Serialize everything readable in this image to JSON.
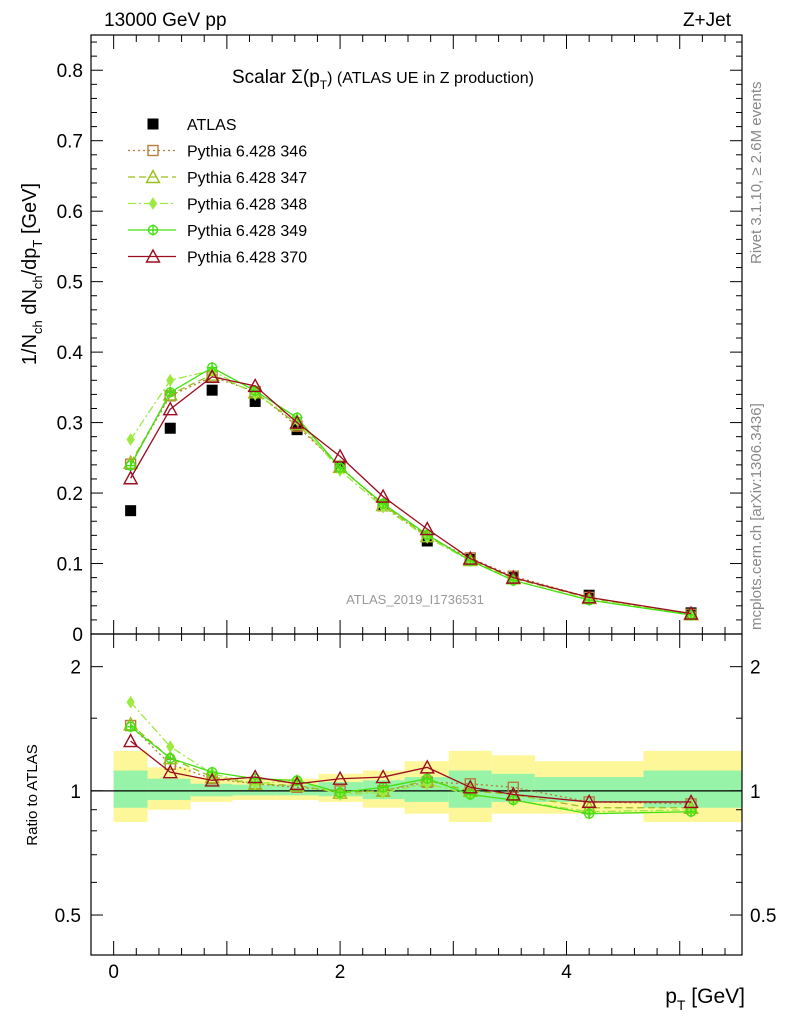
{
  "header": {
    "left": "13000 GeV pp",
    "right": "Z+Jet",
    "side_rivet": "Rivet 3.1.10, ≥ 2.6M events",
    "side_mcplots": "mcplots.cern.ch [arXiv:1306.3436]"
  },
  "chart_data": [
    {
      "type": "scatter",
      "title": "Scalar Σ(p_T) (ATLAS UE in Z production)",
      "title_main": "Scalar Σ(p",
      "title_sub": "T",
      "title_rest": ") (ATLAS UE in Z production)",
      "watermark": "ATLAS_2019_I1736531",
      "ylabel": "1/N_ch dN_ch/dp_T [GeV]",
      "xlabel": "p_T [GeV]",
      "xlim": [
        -0.2,
        5.55
      ],
      "ylim": [
        0,
        0.85
      ],
      "grid": false,
      "legend_position": "top-left",
      "x": [
        0.15,
        0.5,
        0.87,
        1.25,
        1.62,
        2.0,
        2.38,
        2.77,
        3.15,
        3.53,
        4.2,
        5.1
      ],
      "yticks": [
        {
          "v": 0,
          "label": "0"
        },
        {
          "v": 0.1,
          "label": "0.1"
        },
        {
          "v": 0.2,
          "label": "0.2"
        },
        {
          "v": 0.3,
          "label": "0.3"
        },
        {
          "v": 0.4,
          "label": "0.4"
        },
        {
          "v": 0.5,
          "label": "0.5"
        },
        {
          "v": 0.6,
          "label": "0.6"
        },
        {
          "v": 0.7,
          "label": "0.7"
        },
        {
          "v": 0.8,
          "label": "0.8"
        }
      ],
      "series": [
        {
          "name": "ATLAS",
          "color": "#000000",
          "marker": "square-filled",
          "values": [
            0.175,
            0.292,
            0.346,
            0.33,
            0.29,
            0.238,
            0.182,
            0.132,
            0.106,
            0.08,
            0.055,
            0.03
          ]
        },
        {
          "name": "Pythia 6.428 346",
          "color": "#b87c3c",
          "marker": "square-open",
          "dash": "2,3",
          "values": [
            0.241,
            0.338,
            0.365,
            0.344,
            0.295,
            0.238,
            0.182,
            0.138,
            0.108,
            0.082,
            0.052,
            0.028
          ]
        },
        {
          "name": "Pythia 6.428 347",
          "color": "#9abf1a",
          "marker": "triangle-open",
          "dash": "7,4",
          "values": [
            0.243,
            0.34,
            0.368,
            0.343,
            0.298,
            0.237,
            0.183,
            0.139,
            0.105,
            0.079,
            0.051,
            0.028
          ]
        },
        {
          "name": "Pythia 6.428 348",
          "color": "#9cea40",
          "marker": "diamond",
          "dash": "8,3,2,3",
          "values": [
            0.276,
            0.36,
            0.374,
            0.34,
            0.304,
            0.232,
            0.18,
            0.137,
            0.104,
            0.076,
            0.049,
            0.027
          ]
        },
        {
          "name": "Pythia 6.428 349",
          "color": "#44e012",
          "marker": "cross-circle",
          "values": [
            0.239,
            0.343,
            0.378,
            0.345,
            0.307,
            0.236,
            0.185,
            0.141,
            0.104,
            0.076,
            0.048,
            0.027
          ]
        },
        {
          "name": "Pythia 6.428 370",
          "color": "#9c0d1f",
          "marker": "triangle-open",
          "values": [
            0.221,
            0.319,
            0.365,
            0.352,
            0.3,
            0.252,
            0.195,
            0.149,
            0.107,
            0.08,
            0.052,
            0.029
          ]
        }
      ]
    },
    {
      "type": "scatter",
      "title": "",
      "ylabel": "Ratio to ATLAS",
      "xlabel": "p_T [GeV]",
      "xlim": [
        -0.2,
        5.55
      ],
      "ylim": [
        0.4,
        2.4
      ],
      "log_y": true,
      "legend_position": "none",
      "x": [
        0.15,
        0.5,
        0.87,
        1.25,
        1.62,
        2.0,
        2.38,
        2.77,
        3.15,
        3.53,
        4.2,
        5.1
      ],
      "xticks": [
        {
          "v": 0,
          "label": "0"
        },
        {
          "v": 2,
          "label": "2"
        },
        {
          "v": 4,
          "label": "4"
        }
      ],
      "yticks": [
        {
          "v": 0.5,
          "label": "0.5"
        },
        {
          "v": 1,
          "label": "1"
        },
        {
          "v": 2,
          "label": "2"
        }
      ],
      "bands": {
        "edges": [
          0.0,
          0.3,
          0.68,
          1.05,
          1.44,
          1.81,
          2.2,
          2.57,
          2.96,
          3.34,
          3.72,
          4.68,
          5.55
        ],
        "yellow_lo": [
          0.84,
          0.9,
          0.94,
          0.95,
          0.95,
          0.94,
          0.91,
          0.88,
          0.84,
          0.88,
          0.88,
          0.84
        ],
        "yellow_hi": [
          1.25,
          1.14,
          1.08,
          1.07,
          1.07,
          1.1,
          1.12,
          1.18,
          1.25,
          1.22,
          1.18,
          1.25
        ],
        "green_lo": [
          0.91,
          0.95,
          0.97,
          0.975,
          0.975,
          0.97,
          0.955,
          0.94,
          0.91,
          0.94,
          0.94,
          0.91
        ],
        "green_hi": [
          1.12,
          1.07,
          1.04,
          1.035,
          1.035,
          1.05,
          1.06,
          1.08,
          1.12,
          1.1,
          1.08,
          1.12
        ]
      },
      "series": [
        {
          "name": "Pythia 6.428 346",
          "color": "#b87c3c",
          "marker": "square-open",
          "dash": "2,3",
          "values": [
            1.44,
            1.16,
            1.07,
            1.04,
            1.02,
            1.0,
            1.0,
            1.05,
            1.04,
            1.02,
            0.94,
            0.93
          ]
        },
        {
          "name": "Pythia 6.428 347",
          "color": "#9abf1a",
          "marker": "triangle-open",
          "dash": "7,4",
          "values": [
            1.45,
            1.2,
            1.08,
            1.04,
            1.03,
            0.99,
            1.0,
            1.06,
            1.0,
            0.98,
            0.91,
            0.91
          ]
        },
        {
          "name": "Pythia 6.428 348",
          "color": "#9cea40",
          "marker": "diamond",
          "dash": "8,3,2,3",
          "values": [
            1.64,
            1.28,
            1.1,
            1.04,
            1.06,
            0.98,
            0.99,
            1.04,
            0.98,
            0.95,
            0.89,
            0.9
          ]
        },
        {
          "name": "Pythia 6.428 349",
          "color": "#44e012",
          "marker": "cross-circle",
          "values": [
            1.43,
            1.2,
            1.11,
            1.07,
            1.06,
            0.99,
            1.02,
            1.07,
            0.98,
            0.95,
            0.88,
            0.89
          ]
        },
        {
          "name": "Pythia 6.428 370",
          "color": "#9c0d1f",
          "marker": "triangle-open",
          "values": [
            1.32,
            1.11,
            1.06,
            1.08,
            1.04,
            1.07,
            1.08,
            1.14,
            1.02,
            0.98,
            0.94,
            0.94
          ]
        }
      ]
    }
  ]
}
